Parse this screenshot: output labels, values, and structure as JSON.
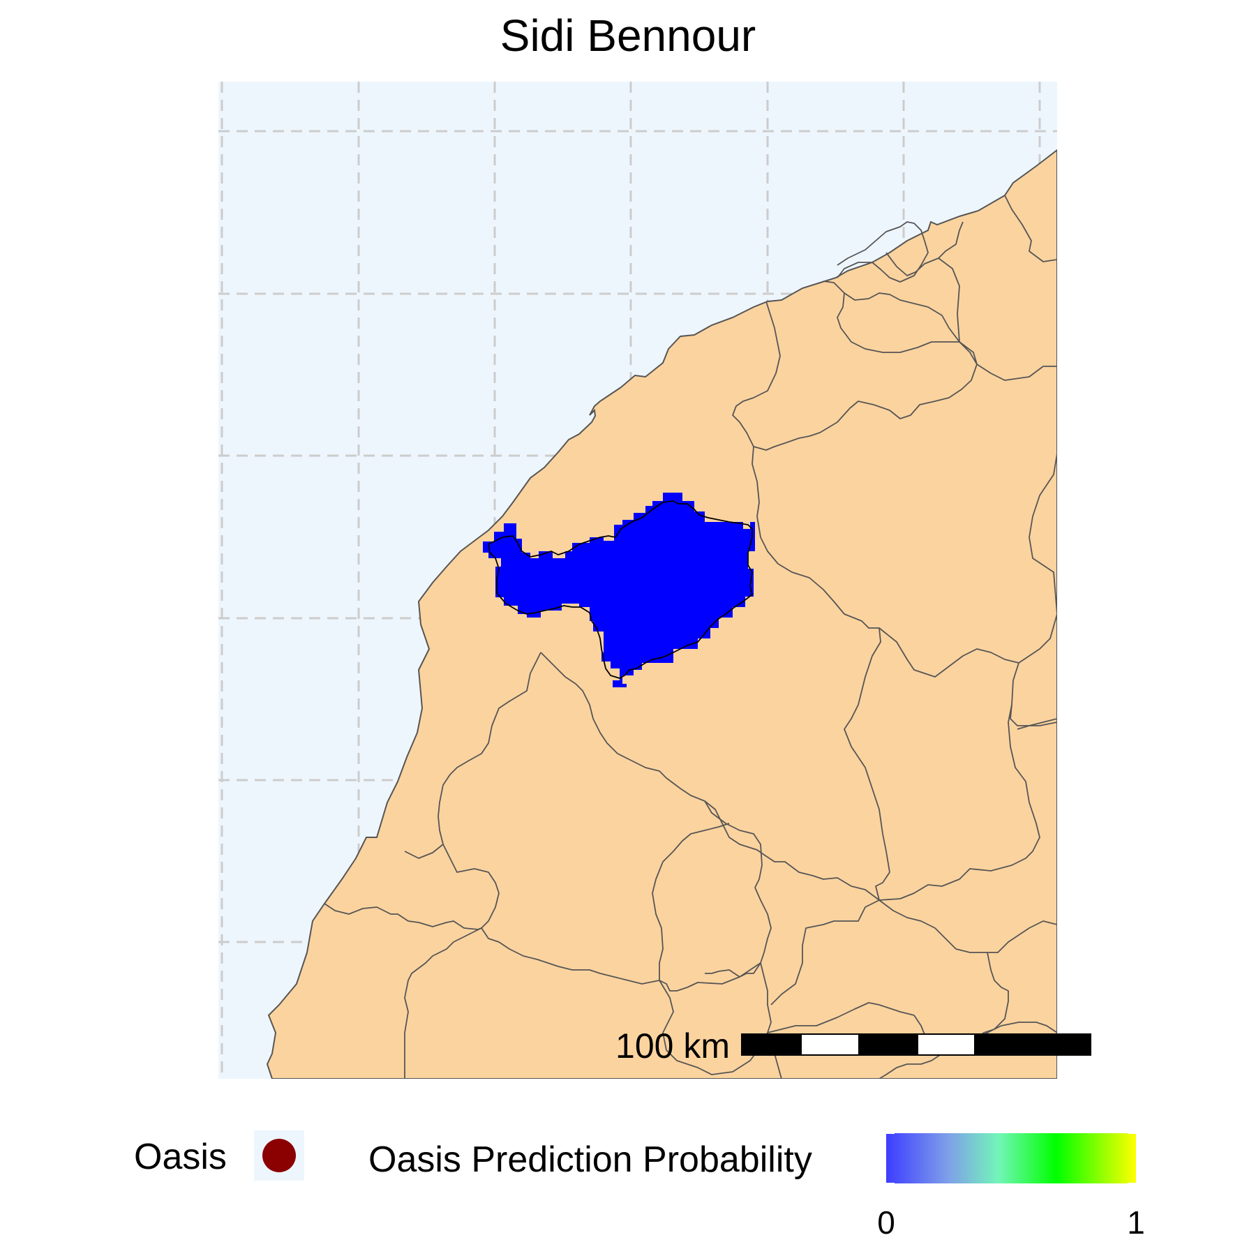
{
  "title": "Sidi Bennour",
  "colors": {
    "sea": "#EEF6FD",
    "land": "#FBD39F",
    "border": "#555555",
    "grid": "#CCCCCC",
    "prediction": "#0000FF",
    "oasis_point": "#8B0000"
  },
  "scale_bar": {
    "label": "100 km"
  },
  "legend": {
    "oasis_label": "Oasis",
    "probability_label": "Oasis Prediction Probability",
    "gradient_colors": [
      "#3D3DFF",
      "#7FA0E8",
      "#72F5B8",
      "#00FF00",
      "#FFFF00"
    ],
    "min_label": "0",
    "max_label": "1"
  }
}
